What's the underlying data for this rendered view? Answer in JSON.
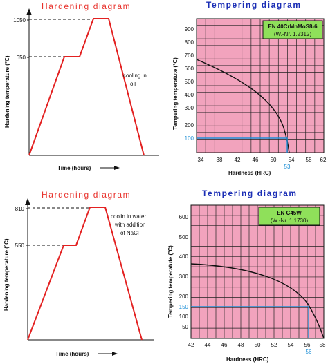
{
  "diagrams": [
    {
      "hardening": {
        "title": "Hardening diagram",
        "ylabel": "Hardening temperature (°C)",
        "xlabel": "Time (hours)",
        "temp_high": "1050",
        "temp_mid": "650",
        "note_lines": [
          "cooling in",
          "oil"
        ]
      },
      "tempering": {
        "title": "Tempering diagram",
        "steel": "EN 40CrMnMoS8-6",
        "steel_no": "(W.-Nr. 1.2312)",
        "ylabel": "Tempering temperatute (°C)",
        "xlabel": "Hardness (HRC)",
        "xticks": [
          "34",
          "38",
          "42",
          "46",
          "50",
          "54",
          "58",
          "62"
        ],
        "yticks": [
          "900",
          "800",
          "700",
          "600",
          "500",
          "400",
          "300",
          "200",
          "100"
        ],
        "marker_temp": "100",
        "marker_hardness": "53"
      }
    },
    {
      "hardening": {
        "title": "Hardening diagram",
        "ylabel": "Hardening temperature (°C)",
        "xlabel": "Time (hours)",
        "temp_high": "810",
        "temp_mid": "550",
        "note_lines": [
          "coolin in water",
          "with addition",
          "of NaCl"
        ]
      },
      "tempering": {
        "title": "Tempering diagram",
        "steel": "EN C45W",
        "steel_no": "(W.-Nr. 1.1730)",
        "ylabel": "Tempering temperatute (°C)",
        "xlabel": "Hardness (HRC)",
        "xticks": [
          "42",
          "44",
          "46",
          "48",
          "50",
          "52",
          "54",
          "56",
          "58"
        ],
        "yticks": [
          "600",
          "500",
          "400",
          "300",
          "200",
          "150",
          "100",
          "50"
        ],
        "marker_temp": "150",
        "marker_hardness": "56"
      }
    }
  ],
  "colors": {
    "hardening_line": "#e32121",
    "title_red": "#e8312b",
    "title_blue": "#1b2eb5",
    "grid_fill": "#f2a3bd",
    "marker": "#1e8fd6",
    "label_box": "#8fe05a"
  }
}
